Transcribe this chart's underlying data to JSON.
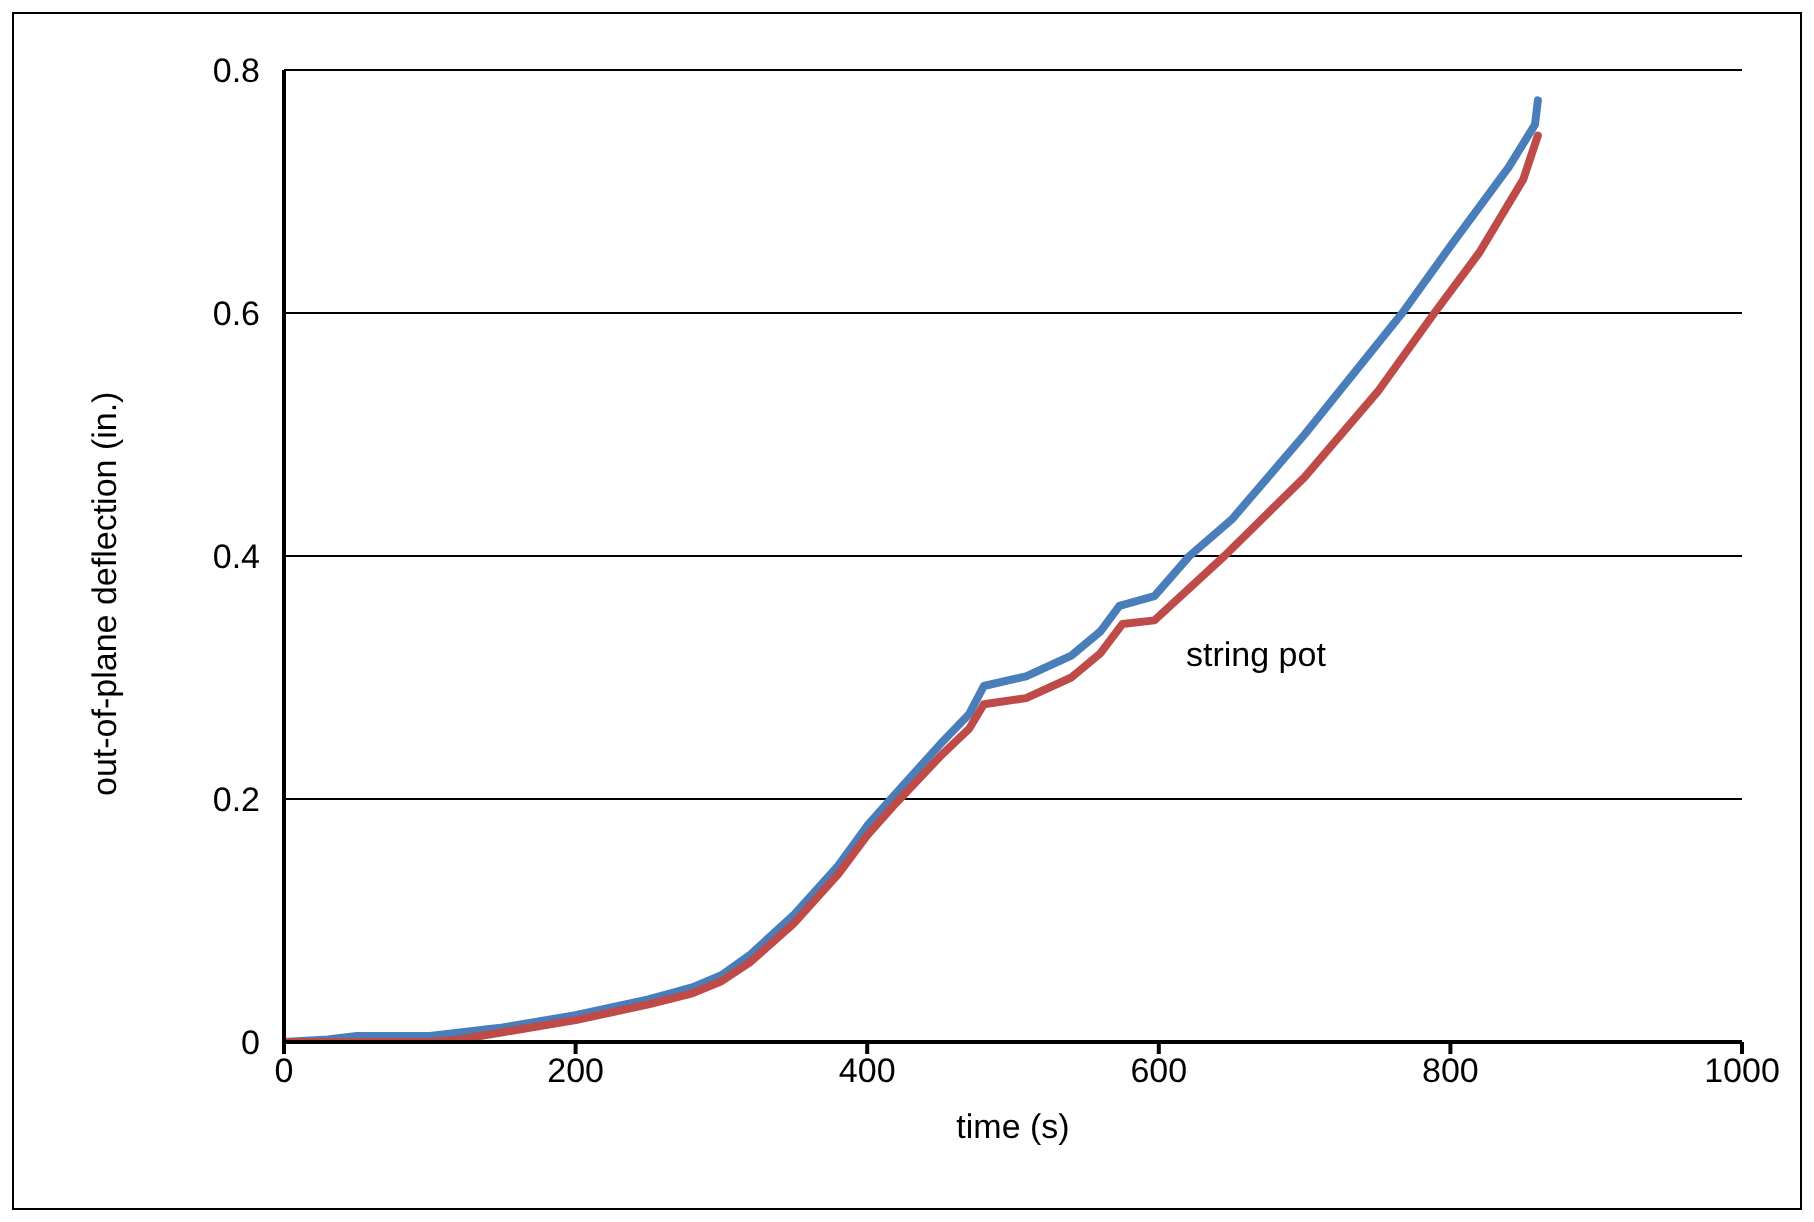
{
  "chart_data": {
    "type": "line",
    "xlabel": "time (s)",
    "ylabel": "out-of-plane deflection (in.)",
    "xlim": [
      0,
      1000
    ],
    "xticks": [
      0,
      200,
      400,
      600,
      800,
      1000
    ],
    "ylim": [
      0,
      0.8
    ],
    "yticks": [
      0,
      0.2,
      0.4,
      0.6,
      0.8
    ],
    "grid": "y",
    "legend": false,
    "marker": "none",
    "line_style": "solid",
    "annotations": [
      "string pot"
    ],
    "series": [
      {
        "color": "#4a7ebb",
        "x": [
          0,
          30,
          50,
          100,
          150,
          200,
          250,
          280,
          300,
          320,
          350,
          380,
          400,
          420,
          450,
          470,
          480,
          509,
          540,
          560,
          573,
          597,
          621,
          650,
          700,
          767,
          800,
          840,
          858,
          860
        ],
        "values": [
          0,
          0.002,
          0.005,
          0.005,
          0.012,
          0.022,
          0.035,
          0.045,
          0.055,
          0.072,
          0.105,
          0.145,
          0.178,
          0.205,
          0.245,
          0.27,
          0.293,
          0.301,
          0.318,
          0.338,
          0.359,
          0.367,
          0.4,
          0.43,
          0.5,
          0.6,
          0.655,
          0.72,
          0.755,
          0.775
        ]
      },
      {
        "color": "#be4b48",
        "x": [
          0,
          50,
          100,
          120,
          150,
          200,
          250,
          280,
          300,
          320,
          350,
          380,
          400,
          420,
          450,
          470,
          480,
          509,
          540,
          560,
          575,
          597,
          645,
          700,
          750,
          789,
          820,
          850,
          860
        ],
        "values": [
          0,
          0,
          0,
          0.002,
          0.008,
          0.018,
          0.031,
          0.04,
          0.05,
          0.066,
          0.098,
          0.138,
          0.17,
          0.197,
          0.235,
          0.258,
          0.278,
          0.283,
          0.3,
          0.32,
          0.344,
          0.347,
          0.4,
          0.465,
          0.535,
          0.6,
          0.65,
          0.71,
          0.746
        ]
      }
    ]
  }
}
